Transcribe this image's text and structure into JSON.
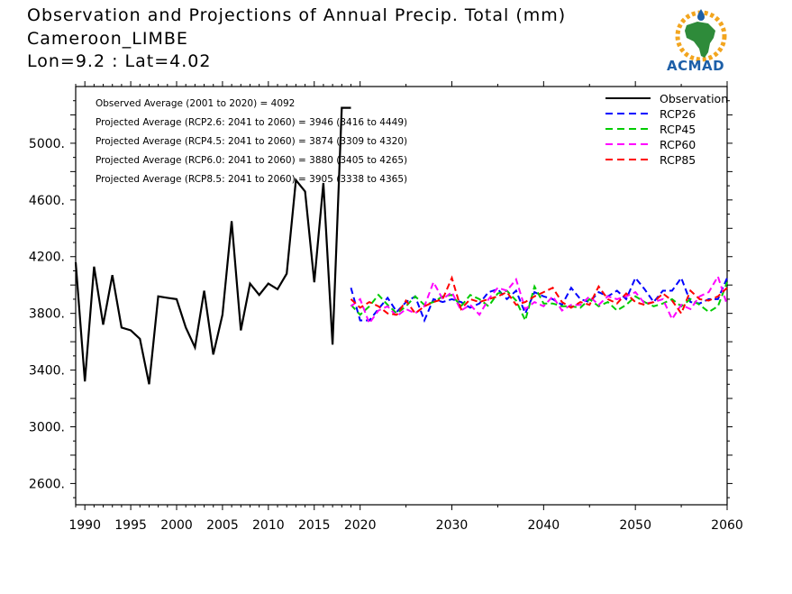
{
  "title": {
    "line1": "Observation and Projections of Annual Precip. Total (mm)",
    "line2": "Cameroon_LIMBE",
    "line3": "Lon=9.2 : Lat=4.02"
  },
  "logo": {
    "text": "ACMAD"
  },
  "stats": [
    "Observed Average (2001 to 2020) = 4092",
    "Projected Average (RCP2.6: 2041 to 2060) = 3946 (3416 to 4449)",
    "Projected Average (RCP4.5: 2041 to 2060) = 3874 (3309 to 4320)",
    "Projected Average (RCP6.0: 2041 to 2060) = 3880 (3405 to 4265)",
    "Projected Average (RCP8.5: 2041 to 2060) = 3905 (3338 to 4365)"
  ],
  "chart_data": {
    "type": "line",
    "xlim": [
      1989,
      2060
    ],
    "ylim": [
      2450,
      5400
    ],
    "x_ticks": [
      1990,
      1995,
      2000,
      2005,
      2010,
      2015,
      2020,
      2030,
      2040,
      2050,
      2060
    ],
    "y_ticks": [
      2600,
      3000,
      3400,
      3800,
      4200,
      4600,
      5000
    ],
    "y_tick_labels": [
      "2600.",
      "3000.",
      "3400.",
      "3800.",
      "4200.",
      "4600.",
      "5000."
    ],
    "legend_position": "top-right",
    "grid": false,
    "series": [
      {
        "name": "Observation",
        "color": "#000000",
        "dashed": false,
        "x": [
          1989,
          1990,
          1991,
          1992,
          1993,
          1994,
          1995,
          1996,
          1997,
          1998,
          1999,
          2000,
          2001,
          2002,
          2003,
          2004,
          2005,
          2006,
          2007,
          2008,
          2009,
          2010,
          2011,
          2012,
          2013,
          2014,
          2015,
          2016,
          2017,
          2018,
          2019
        ],
        "values": [
          4160,
          3320,
          4130,
          3720,
          4070,
          3700,
          3680,
          3620,
          3300,
          3920,
          3910,
          3900,
          3700,
          3560,
          3960,
          3510,
          3790,
          4450,
          3680,
          4010,
          3930,
          4010,
          3970,
          4080,
          4740,
          4660,
          4020,
          4720,
          3580,
          5250,
          5250
        ]
      },
      {
        "name": "RCP26",
        "color": "#0000ff",
        "dashed": true,
        "x": [
          2019,
          2020,
          2021,
          2022,
          2023,
          2024,
          2025,
          2026,
          2027,
          2028,
          2029,
          2030,
          2031,
          2032,
          2033,
          2034,
          2035,
          2036,
          2037,
          2038,
          2039,
          2040,
          2041,
          2042,
          2043,
          2044,
          2045,
          2046,
          2047,
          2048,
          2049,
          2050,
          2051,
          2052,
          2053,
          2054,
          2055,
          2056,
          2057,
          2058,
          2059,
          2060
        ],
        "values": [
          3980,
          3750,
          3750,
          3830,
          3910,
          3810,
          3880,
          3920,
          3750,
          3900,
          3880,
          3900,
          3880,
          3840,
          3870,
          3950,
          3970,
          3900,
          3960,
          3800,
          3950,
          3920,
          3900,
          3860,
          3980,
          3900,
          3880,
          3950,
          3920,
          3960,
          3900,
          4050,
          3970,
          3880,
          3960,
          3960,
          4050,
          3880,
          3870,
          3900,
          3900,
          4050
        ]
      },
      {
        "name": "RCP45",
        "color": "#00cc00",
        "dashed": true,
        "x": [
          2019,
          2020,
          2021,
          2022,
          2023,
          2024,
          2025,
          2026,
          2027,
          2028,
          2029,
          2030,
          2031,
          2032,
          2033,
          2034,
          2035,
          2036,
          2037,
          2038,
          2039,
          2040,
          2041,
          2042,
          2043,
          2044,
          2045,
          2046,
          2047,
          2048,
          2049,
          2050,
          2051,
          2052,
          2053,
          2054,
          2055,
          2056,
          2057,
          2058,
          2059,
          2060
        ],
        "values": [
          3860,
          3790,
          3850,
          3930,
          3860,
          3800,
          3850,
          3920,
          3860,
          3880,
          3920,
          3930,
          3850,
          3930,
          3900,
          3850,
          3940,
          3960,
          3890,
          3750,
          3990,
          3870,
          3870,
          3850,
          3850,
          3840,
          3900,
          3850,
          3880,
          3820,
          3860,
          3920,
          3880,
          3850,
          3870,
          3900,
          3850,
          3900,
          3860,
          3810,
          3850,
          4020
        ]
      },
      {
        "name": "RCP60",
        "color": "#ff00ff",
        "dashed": true,
        "x": [
          2019,
          2020,
          2021,
          2022,
          2023,
          2024,
          2025,
          2026,
          2027,
          2028,
          2029,
          2030,
          2031,
          2032,
          2033,
          2034,
          2035,
          2036,
          2037,
          2038,
          2039,
          2040,
          2041,
          2042,
          2043,
          2044,
          2045,
          2046,
          2047,
          2048,
          2049,
          2050,
          2051,
          2052,
          2053,
          2054,
          2055,
          2056,
          2057,
          2058,
          2059,
          2060
        ],
        "values": [
          3850,
          3900,
          3730,
          3820,
          3850,
          3780,
          3830,
          3800,
          3850,
          4020,
          3900,
          3950,
          3820,
          3860,
          3790,
          3900,
          3980,
          3960,
          4040,
          3830,
          3880,
          3850,
          3920,
          3820,
          3860,
          3860,
          3920,
          3860,
          3920,
          3900,
          3920,
          3950,
          3870,
          3880,
          3900,
          3760,
          3860,
          3830,
          3920,
          3950,
          4060,
          3860
        ]
      },
      {
        "name": "RCP85",
        "color": "#ff0000",
        "dashed": true,
        "x": [
          2019,
          2020,
          2021,
          2022,
          2023,
          2024,
          2025,
          2026,
          2027,
          2028,
          2029,
          2030,
          2031,
          2032,
          2033,
          2034,
          2035,
          2036,
          2037,
          2038,
          2039,
          2040,
          2041,
          2042,
          2043,
          2044,
          2045,
          2046,
          2047,
          2048,
          2049,
          2050,
          2051,
          2052,
          2053,
          2054,
          2055,
          2056,
          2057,
          2058,
          2059,
          2060
        ],
        "values": [
          3900,
          3840,
          3880,
          3850,
          3800,
          3790,
          3890,
          3800,
          3850,
          3880,
          3900,
          4050,
          3830,
          3900,
          3880,
          3900,
          3920,
          3950,
          3860,
          3880,
          3920,
          3950,
          3980,
          3880,
          3840,
          3880,
          3860,
          3990,
          3900,
          3870,
          3940,
          3880,
          3860,
          3880,
          3940,
          3890,
          3800,
          3960,
          3900,
          3890,
          3920,
          3980
        ]
      }
    ]
  }
}
